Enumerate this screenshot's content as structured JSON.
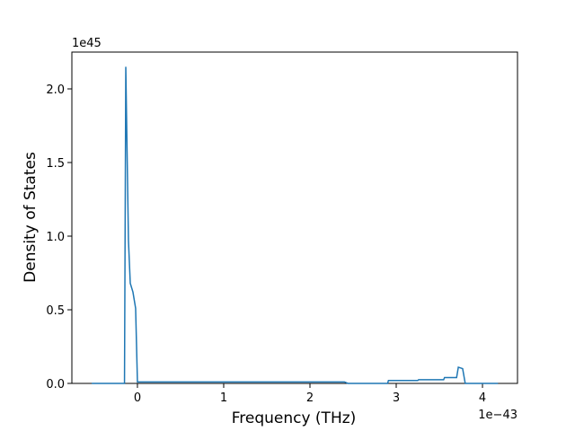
{
  "chart_data": {
    "type": "line",
    "x_label": "Frequency (THz)",
    "y_label": "Density of States",
    "x_offset_label": "1e−43",
    "y_offset_label": "1e45",
    "x": [
      -0.53,
      -0.15,
      -0.135,
      -0.104,
      -0.083,
      -0.052,
      -0.021,
      0,
      1,
      2.4,
      2.44,
      2.9,
      2.91,
      3.25,
      3.26,
      3.55,
      3.56,
      3.7,
      3.72,
      3.77,
      3.8,
      4.18
    ],
    "series": [
      {
        "color": "#1f77b4",
        "values": [
          0,
          0,
          2.15,
          0.97,
          0.68,
          0.62,
          0.51,
          0.01,
          0.01,
          0.01,
          0,
          0,
          0.02,
          0.02,
          0.025,
          0.025,
          0.04,
          0.04,
          0.11,
          0.1,
          0,
          0
        ]
      }
    ],
    "xlim": [
      -0.76,
      4.406
    ],
    "ylim": [
      0,
      2.25
    ],
    "xticks": [
      0,
      1,
      2,
      3,
      4
    ],
    "yticks": [
      {
        "value": 0,
        "label": "0.0"
      },
      {
        "value": 0.5,
        "label": "0.5"
      },
      {
        "value": 1,
        "label": "1.0"
      },
      {
        "value": 1.5,
        "label": "1.5"
      },
      {
        "value": 2,
        "label": "2.0"
      }
    ]
  }
}
